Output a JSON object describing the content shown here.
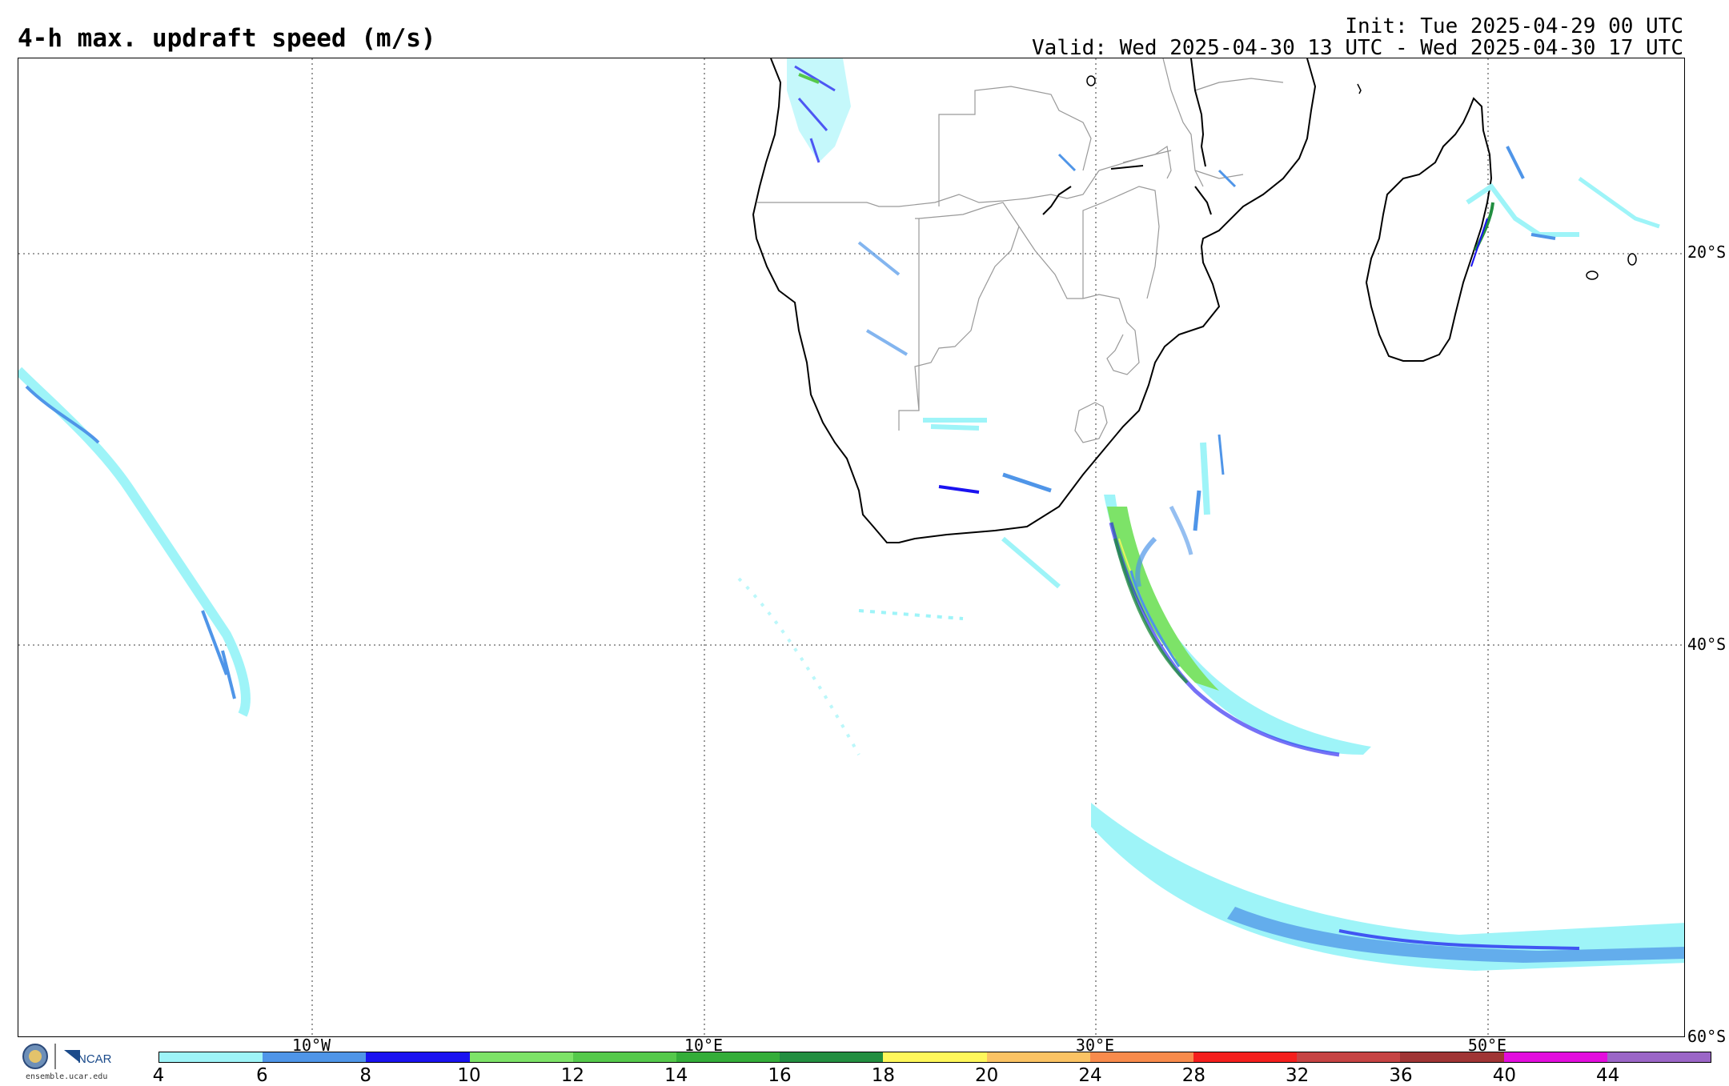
{
  "title": "4-h max. updraft speed (m/s)",
  "init_text": "Init: Tue 2025-04-29 00 UTC",
  "valid_text": "Valid: Wed 2025-04-30 13 UTC - Wed 2025-04-30 17 UTC",
  "lat_labels": [
    "20°S",
    "40°S",
    "60°S"
  ],
  "lon_labels": [
    "10°W",
    "10°E",
    "30°E",
    "50°E"
  ],
  "logo": {
    "org": "NCAR",
    "url": "ensemble.ucar.edu"
  },
  "colorbar": {
    "ticks": [
      "4",
      "6",
      "8",
      "10",
      "12",
      "14",
      "16",
      "18",
      "20",
      "24",
      "28",
      "32",
      "36",
      "40",
      "44"
    ],
    "colors": [
      "#9ef4f8",
      "#4f95e8",
      "#1a12f0",
      "#7de368",
      "#55c94b",
      "#34ad39",
      "#228e40",
      "#fff75b",
      "#fbc364",
      "#f88b4c",
      "#f41f1d",
      "#c64343",
      "#a03535",
      "#e30ddd",
      "#9b66c7"
    ]
  }
}
